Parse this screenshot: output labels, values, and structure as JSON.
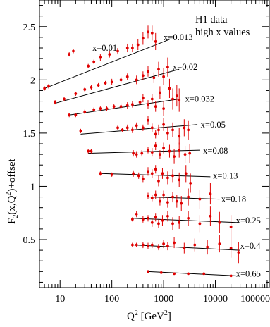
{
  "chart_data": {
    "type": "scatter",
    "title": "",
    "legend": {
      "line1": "H1 data",
      "line2": "high x values",
      "placement": "top-right"
    },
    "xlabel": "Q",
    "xlabel_sup": "2",
    "xlabel_unit_open": " [GeV",
    "xlabel_unit_sup": "2",
    "xlabel_unit_close": "]",
    "ylabel": "F",
    "ylabel_sub": "2",
    "ylabel_rest": "(x,Q",
    "ylabel_sup": "2",
    "ylabel_tail": ")+offset",
    "xscale": "log",
    "xlim": [
      4,
      110000
    ],
    "ylim": [
      0.05,
      2.75
    ],
    "grid": false,
    "x_ticks": [
      {
        "value": 10,
        "label": "10"
      },
      {
        "value": 100,
        "label": "100"
      },
      {
        "value": 1000,
        "label": "1000"
      },
      {
        "value": 10000,
        "label": "10000"
      },
      {
        "value": 100000,
        "label": "100000"
      }
    ],
    "y_ticks": [
      {
        "value": 0.5,
        "label": "0.5"
      },
      {
        "value": 1.0,
        "label": "1"
      },
      {
        "value": 1.5,
        "label": "1.5"
      },
      {
        "value": 2.0,
        "label": "2"
      },
      {
        "value": 2.5,
        "label": "2.5"
      }
    ],
    "series": [
      {
        "name": "x=0.01",
        "fit": [
          [
            5,
            1.92
          ],
          [
            1300,
            2.38
          ]
        ],
        "label_at": [
          42,
          2.3
        ],
        "points": [
          [
            5,
            1.92,
            0.02
          ],
          [
            6,
            1.94,
            0.02
          ],
          [
            15,
            2.24,
            0.02
          ],
          [
            18,
            2.27,
            0.02
          ],
          [
            35,
            2.13,
            0.02
          ],
          [
            45,
            2.17,
            0.02
          ],
          [
            60,
            2.21,
            0.03
          ],
          [
            90,
            2.24,
            0.03
          ],
          [
            130,
            2.27,
            0.03
          ],
          [
            200,
            2.3,
            0.04
          ],
          [
            250,
            2.3,
            0.04
          ],
          [
            320,
            2.33,
            0.05
          ],
          [
            400,
            2.39,
            0.06
          ],
          [
            500,
            2.45,
            0.06
          ],
          [
            600,
            2.44,
            0.07
          ],
          [
            700,
            2.36,
            0.08
          ]
        ]
      },
      {
        "name": "x=0.013",
        "fit": [],
        "label_at": [
          1000,
          2.4
        ],
        "points": []
      },
      {
        "name": "x=0.02",
        "fit": [
          [
            8,
            1.78
          ],
          [
            2000,
            2.1
          ]
        ],
        "label_at": [
          1500,
          2.12
        ],
        "points": [
          [
            8,
            1.79,
            0.02
          ],
          [
            12,
            1.82,
            0.02
          ],
          [
            20,
            1.87,
            0.02
          ],
          [
            30,
            1.91,
            0.02
          ],
          [
            40,
            1.93,
            0.02
          ],
          [
            55,
            1.95,
            0.02
          ],
          [
            75,
            1.97,
            0.02
          ],
          [
            100,
            1.98,
            0.03
          ],
          [
            150,
            2.0,
            0.03
          ],
          [
            200,
            2.03,
            0.03
          ],
          [
            300,
            2.0,
            0.04
          ],
          [
            400,
            2.04,
            0.04
          ],
          [
            500,
            2.08,
            0.05
          ],
          [
            650,
            2.02,
            0.05
          ],
          [
            800,
            2.1,
            0.07
          ],
          [
            1000,
            2.03,
            0.08
          ],
          [
            1200,
            2.12,
            0.09
          ]
        ]
      },
      {
        "name": "x=0.032",
        "fit": [
          [
            15,
            1.67
          ],
          [
            2000,
            1.82
          ]
        ],
        "label_at": [
          2600,
          1.82
        ],
        "points": [
          [
            15,
            1.67,
            0.02
          ],
          [
            20,
            1.67,
            0.02
          ],
          [
            30,
            1.7,
            0.02
          ],
          [
            45,
            1.72,
            0.02
          ],
          [
            60,
            1.73,
            0.02
          ],
          [
            80,
            1.73,
            0.02
          ],
          [
            110,
            1.75,
            0.02
          ],
          [
            150,
            1.75,
            0.03
          ],
          [
            200,
            1.76,
            0.03
          ],
          [
            250,
            1.77,
            0.03
          ],
          [
            350,
            1.79,
            0.03
          ],
          [
            400,
            1.83,
            0.04
          ],
          [
            500,
            1.77,
            0.04
          ],
          [
            600,
            1.82,
            0.05
          ],
          [
            700,
            1.75,
            0.05
          ],
          [
            850,
            1.88,
            0.06
          ],
          [
            1000,
            1.73,
            0.07
          ],
          [
            1300,
            1.92,
            0.09
          ],
          [
            1500,
            1.82,
            0.1
          ],
          [
            1800,
            1.85,
            0.1
          ],
          [
            2000,
            1.81,
            0.11
          ]
        ]
      },
      {
        "name": "x=0.05",
        "fit": [
          [
            25,
            1.49
          ],
          [
            4500,
            1.58
          ]
        ],
        "label_at": [
          5200,
          1.58
        ],
        "points": [
          [
            25,
            1.52,
            0.02
          ],
          [
            130,
            1.55,
            0.02
          ],
          [
            160,
            1.53,
            0.02
          ],
          [
            200,
            1.55,
            0.03
          ],
          [
            250,
            1.53,
            0.03
          ],
          [
            300,
            1.57,
            0.03
          ],
          [
            400,
            1.55,
            0.03
          ],
          [
            500,
            1.62,
            0.04
          ],
          [
            600,
            1.55,
            0.04
          ],
          [
            700,
            1.49,
            0.04
          ],
          [
            800,
            1.53,
            0.05
          ],
          [
            1000,
            1.58,
            0.06
          ],
          [
            1200,
            1.5,
            0.06
          ],
          [
            1500,
            1.53,
            0.07
          ],
          [
            2000,
            1.47,
            0.08
          ],
          [
            2500,
            1.55,
            0.08
          ],
          [
            3000,
            1.53,
            0.09
          ]
        ]
      },
      {
        "name": "x=0.08",
        "fit": [
          [
            35,
            1.31
          ],
          [
            5000,
            1.34
          ]
        ],
        "label_at": [
          5800,
          1.335
        ],
        "points": [
          [
            35,
            1.33,
            0.02
          ],
          [
            40,
            1.33,
            0.02
          ],
          [
            260,
            1.31,
            0.03
          ],
          [
            300,
            1.3,
            0.03
          ],
          [
            380,
            1.31,
            0.03
          ],
          [
            500,
            1.34,
            0.03
          ],
          [
            600,
            1.32,
            0.04
          ],
          [
            700,
            1.38,
            0.04
          ],
          [
            850,
            1.3,
            0.04
          ],
          [
            1000,
            1.36,
            0.05
          ],
          [
            1300,
            1.33,
            0.06
          ],
          [
            1600,
            1.28,
            0.07
          ],
          [
            2000,
            1.34,
            0.07
          ],
          [
            2600,
            1.3,
            0.08
          ],
          [
            3200,
            1.31,
            0.09
          ]
        ]
      },
      {
        "name": "x=0.13",
        "fit": [
          [
            60,
            1.12
          ],
          [
            8000,
            1.09
          ]
        ],
        "label_at": [
          9000,
          1.1
        ],
        "points": [
          [
            60,
            1.12,
            0.02
          ],
          [
            100,
            1.11,
            0.02
          ],
          [
            260,
            1.12,
            0.03
          ],
          [
            330,
            1.1,
            0.03
          ],
          [
            400,
            1.07,
            0.03
          ],
          [
            500,
            1.14,
            0.04
          ],
          [
            600,
            1.12,
            0.04
          ],
          [
            700,
            1.16,
            0.04
          ],
          [
            800,
            1.05,
            0.05
          ],
          [
            950,
            1.12,
            0.05
          ],
          [
            1200,
            1.08,
            0.06
          ],
          [
            1500,
            1.1,
            0.06
          ],
          [
            2000,
            1.06,
            0.07
          ],
          [
            2700,
            1.12,
            0.08
          ],
          [
            3300,
            1.03,
            0.09
          ]
        ]
      },
      {
        "name": "x=0.18",
        "fit": [
          [
            500,
            0.9
          ],
          [
            12000,
            0.88
          ]
        ],
        "label_at": [
          13000,
          0.88
        ],
        "points": [
          [
            500,
            0.91,
            0.03
          ],
          [
            600,
            0.89,
            0.03
          ],
          [
            700,
            0.92,
            0.04
          ],
          [
            850,
            0.86,
            0.04
          ],
          [
            1000,
            0.92,
            0.04
          ],
          [
            1200,
            0.85,
            0.05
          ],
          [
            1500,
            0.9,
            0.05
          ],
          [
            1800,
            0.86,
            0.06
          ],
          [
            2200,
            0.84,
            0.07
          ],
          [
            3000,
            0.9,
            0.08
          ],
          [
            5000,
            0.88,
            0.09
          ],
          [
            8000,
            0.93,
            0.1
          ]
        ]
      },
      {
        "name": "x=0.25",
        "fit": [
          [
            250,
            0.7
          ],
          [
            28000,
            0.66
          ]
        ],
        "label_at": [
          25000,
          0.68
        ],
        "points": [
          [
            250,
            0.69,
            0.02
          ],
          [
            300,
            0.74,
            0.03
          ],
          [
            400,
            0.69,
            0.03
          ],
          [
            500,
            0.7,
            0.03
          ],
          [
            600,
            0.66,
            0.04
          ],
          [
            700,
            0.71,
            0.04
          ],
          [
            800,
            0.65,
            0.04
          ],
          [
            950,
            0.68,
            0.05
          ],
          [
            1200,
            0.72,
            0.05
          ],
          [
            1500,
            0.65,
            0.06
          ],
          [
            2000,
            0.66,
            0.06
          ],
          [
            3000,
            0.7,
            0.07
          ],
          [
            5000,
            0.65,
            0.08
          ],
          [
            8000,
            0.72,
            0.09
          ],
          [
            12000,
            0.66,
            0.1
          ],
          [
            20000,
            0.62,
            0.11
          ]
        ]
      },
      {
        "name": "x=0.4",
        "fit": [
          [
            250,
            0.45
          ],
          [
            30000,
            0.4
          ]
        ],
        "label_at": [
          30000,
          0.44
        ],
        "points": [
          [
            250,
            0.45,
            0.02
          ],
          [
            300,
            0.45,
            0.02
          ],
          [
            400,
            0.45,
            0.03
          ],
          [
            500,
            0.44,
            0.03
          ],
          [
            600,
            0.45,
            0.03
          ],
          [
            800,
            0.43,
            0.03
          ],
          [
            1000,
            0.46,
            0.04
          ],
          [
            1200,
            0.44,
            0.04
          ],
          [
            1600,
            0.47,
            0.05
          ],
          [
            2500,
            0.42,
            0.05
          ],
          [
            4000,
            0.45,
            0.06
          ],
          [
            7000,
            0.43,
            0.07
          ],
          [
            12000,
            0.46,
            0.08
          ],
          [
            20000,
            0.42,
            0.09
          ],
          [
            28000,
            0.38,
            0.1
          ]
        ]
      },
      {
        "name": "x=0.65",
        "fit": [
          [
            500,
            0.2
          ],
          [
            25000,
            0.16
          ]
        ],
        "label_at": [
          25000,
          0.18
        ],
        "points": [
          [
            500,
            0.2,
            0.01
          ],
          [
            900,
            0.19,
            0.01
          ],
          [
            1600,
            0.18,
            0.01
          ],
          [
            3000,
            0.18,
            0.01
          ],
          [
            6000,
            0.18,
            0.01
          ],
          [
            20000,
            0.16,
            0.01
          ]
        ]
      }
    ]
  }
}
